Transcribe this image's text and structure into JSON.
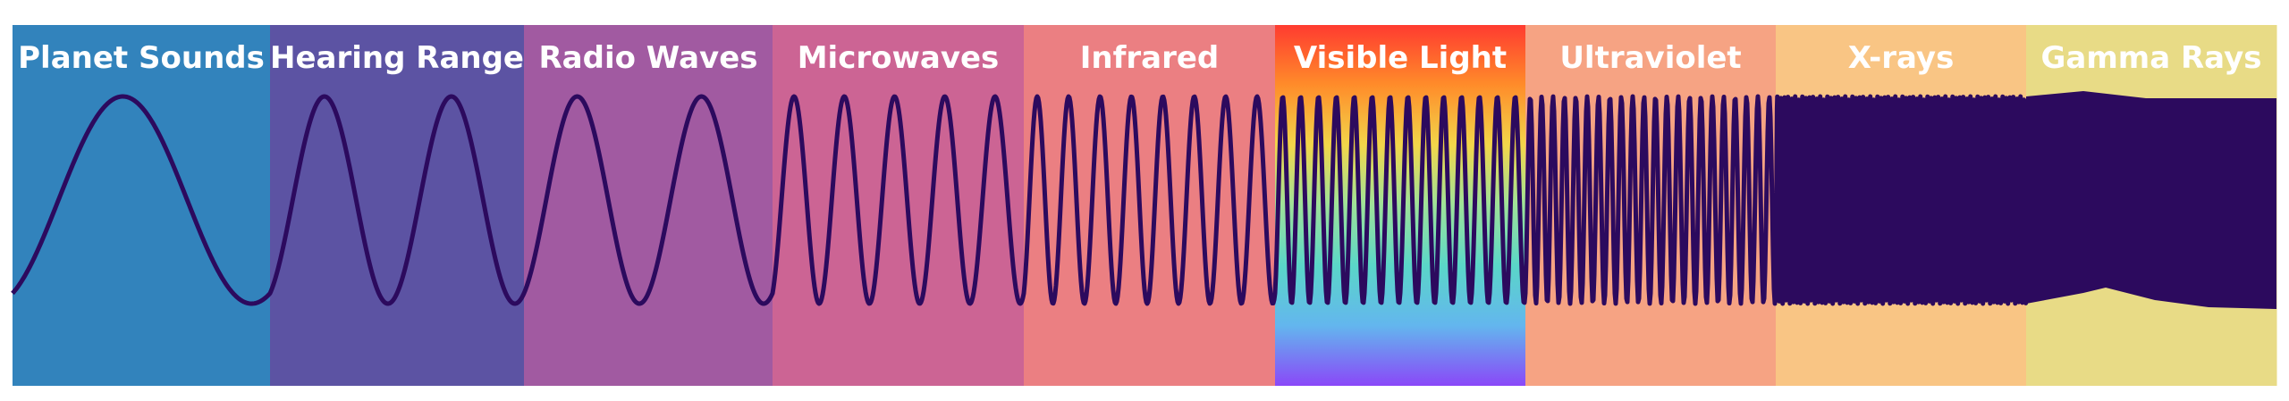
{
  "bands": [
    {
      "label": "Planet Sounds",
      "color": "#3283bc",
      "cycles": 1
    },
    {
      "label": "Hearing Range",
      "color": "#5c53a3",
      "cycles": 2
    },
    {
      "label": "Radio Waves",
      "color": "#a15aa1",
      "cycles": 2
    },
    {
      "label": "Microwaves",
      "color": "#cc6494",
      "cycles": 5
    },
    {
      "label": "Infrared",
      "color": "#eb7f82",
      "cycles": 8
    },
    {
      "label": "Visible Light",
      "color": "spectrum",
      "cycles": 14,
      "gradient": [
        "#ff3b30",
        "#ff8c2a",
        "#f2d64a",
        "#9ee29a",
        "#5ad6c8",
        "#63b6ee",
        "#8a48f8"
      ]
    },
    {
      "label": "Ultraviolet",
      "color": "#f6a383",
      "cycles": 22
    },
    {
      "label": "X-rays",
      "color": "#f9c584",
      "cycles": 70
    },
    {
      "label": "Gamma Rays",
      "color": "#e8db86",
      "cycles": 0
    }
  ],
  "wave_color": "#2c0a5e"
}
